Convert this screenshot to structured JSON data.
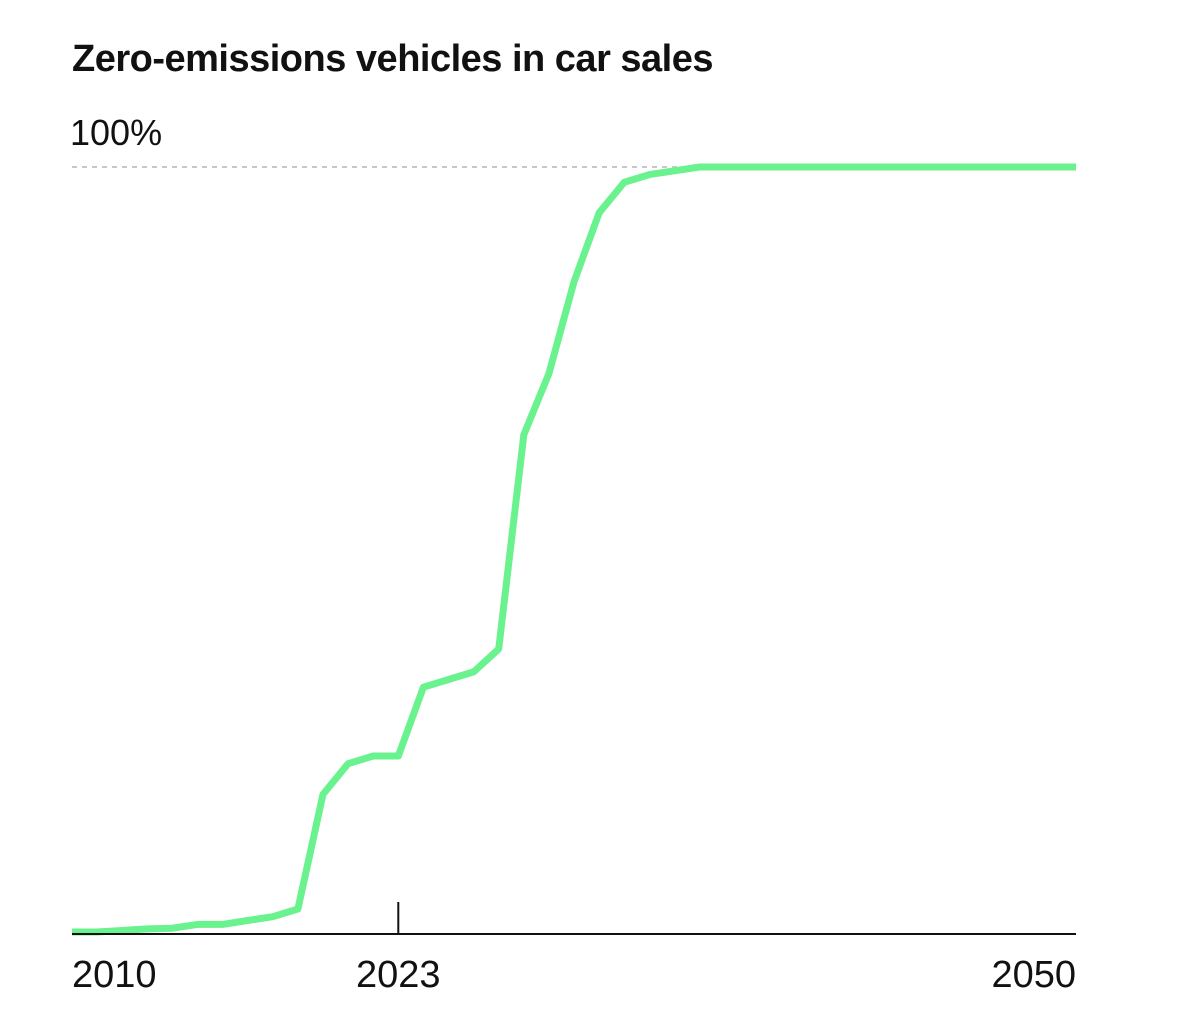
{
  "chart_data": {
    "type": "line",
    "title": "Zero-emissions vehicles in car sales",
    "y_max_label": "100%",
    "ylim": [
      0,
      100
    ],
    "xlim": [
      2010,
      2050
    ],
    "x_tick_labels": [
      "2010",
      "2023",
      "2050"
    ],
    "x_ticks": [
      2010,
      2023,
      2050
    ],
    "marked_year": 2023,
    "grid": "dashed line at 100%",
    "line_color": "#6af28f",
    "series": [
      {
        "x": [
          2010,
          2011,
          2012,
          2013,
          2014,
          2015,
          2016,
          2017,
          2018,
          2019,
          2020,
          2021,
          2022,
          2023,
          2024,
          2025,
          2026,
          2027,
          2028,
          2029,
          2030,
          2031,
          2032,
          2033,
          2034,
          2035,
          2036,
          2037,
          2038,
          2039,
          2040,
          2041,
          2042,
          2043,
          2044,
          2045,
          2046,
          2047,
          2048,
          2049,
          2050
        ],
        "values": [
          0,
          0,
          0.2,
          0.4,
          0.5,
          1,
          1,
          1.5,
          2,
          3,
          18,
          22,
          23,
          23,
          32,
          33,
          34,
          37,
          65,
          73,
          85,
          94,
          98,
          99,
          99.5,
          100,
          100,
          100,
          100,
          100,
          100,
          100,
          100,
          100,
          100,
          100,
          100,
          100,
          100,
          100,
          100
        ]
      }
    ]
  }
}
